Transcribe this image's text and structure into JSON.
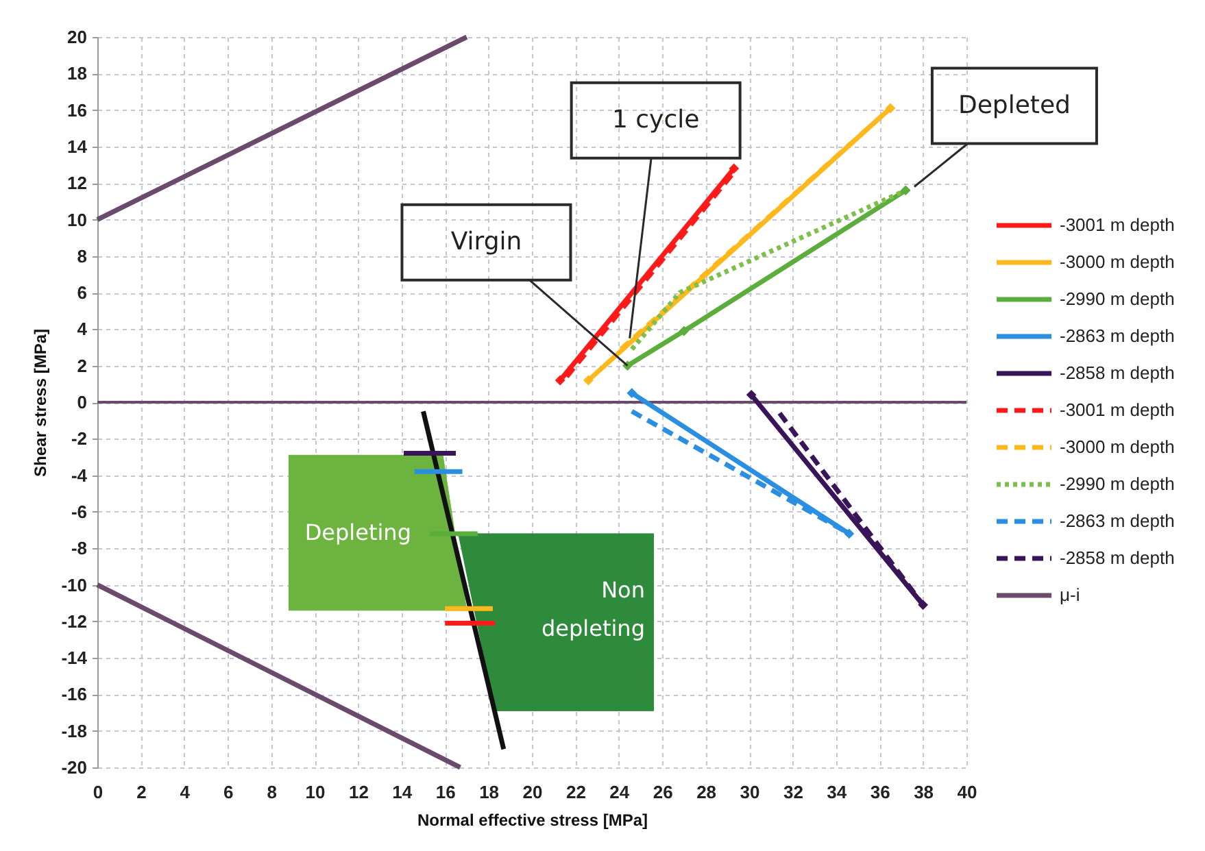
{
  "chart_data": {
    "type": "line",
    "xlabel": "Normal effective stress [MPa]",
    "ylabel": "Shear stress [MPa]",
    "xlim": [
      0,
      40
    ],
    "ylim": [
      -20,
      20
    ],
    "xticks": [
      0,
      2,
      4,
      6,
      8,
      10,
      12,
      14,
      16,
      18,
      20,
      22,
      24,
      26,
      28,
      30,
      32,
      34,
      36,
      38,
      40
    ],
    "yticks": [
      -20,
      -18,
      -16,
      -14,
      -12,
      -10,
      -8,
      -6,
      -4,
      -2,
      0,
      2,
      4,
      6,
      8,
      10,
      12,
      14,
      16,
      18,
      20
    ],
    "grid": true,
    "legend": "right",
    "series": [
      {
        "type": "area",
        "name": "Depleting",
        "color": "#6cb33f",
        "x": [
          8.8,
          15.9,
          17.0,
          8.8
        ],
        "values": [
          -2.9,
          -2.9,
          -11.4,
          -11.4
        ]
      },
      {
        "type": "area",
        "name": "Non depleting",
        "color": "#2e8b3c",
        "x": [
          16.6,
          25.6,
          25.6,
          18.3
        ],
        "values": [
          -7.2,
          -7.2,
          -16.9,
          -16.9
        ]
      },
      {
        "color": "#111111",
        "x": [
          15.0,
          18.7
        ],
        "values": [
          -0.5,
          -19.0
        ],
        "line_style": "solid"
      },
      {
        "color": "#3a1458",
        "x": [
          14.1,
          16.5
        ],
        "values": [
          -2.8,
          -2.8
        ],
        "line_style": "solid"
      },
      {
        "color": "#2a8fe0",
        "x": [
          14.6,
          16.8
        ],
        "values": [
          -3.8,
          -3.8
        ],
        "line_style": "solid"
      },
      {
        "color": "#5cae3c",
        "x": [
          15.3,
          17.5
        ],
        "values": [
          -7.2,
          -7.2
        ],
        "line_style": "solid"
      },
      {
        "color": "#ffb81c",
        "x": [
          16.0,
          18.2
        ],
        "values": [
          -11.3,
          -11.3
        ],
        "line_style": "solid"
      },
      {
        "color": "#ff1a1a",
        "x": [
          16.0,
          18.3
        ],
        "values": [
          -12.1,
          -12.1
        ],
        "line_style": "solid"
      },
      {
        "name": "-3001 m depth",
        "color": "#ff1a1a",
        "x": [
          21.3,
          29.3
        ],
        "values": [
          1.2,
          12.8
        ],
        "line_style": "solid",
        "marker": "diamond"
      },
      {
        "name": "-3000 m depth",
        "color": "#ffb81c",
        "x": [
          22.6,
          36.5
        ],
        "values": [
          1.2,
          16.1
        ],
        "line_style": "solid",
        "marker": "diamond"
      },
      {
        "name": "-2990 m depth",
        "color": "#5cae3c",
        "x": [
          24.4,
          27.0,
          37.2
        ],
        "values": [
          2.0,
          3.9,
          11.6
        ],
        "line_style": "solid",
        "marker": "diamond"
      },
      {
        "name": "-2863 m depth",
        "color": "#2a8fe0",
        "x": [
          24.6,
          34.6
        ],
        "values": [
          0.5,
          -7.2
        ],
        "line_style": "solid",
        "marker": "diamond"
      },
      {
        "name": "-2858 m depth",
        "color": "#3a1458",
        "x": [
          30.1,
          38.0
        ],
        "values": [
          0.4,
          -11.1
        ],
        "line_style": "solid",
        "marker": "diamond"
      },
      {
        "name": "-3001 m depth",
        "color": "#ff1a1a",
        "x": [
          21.6,
          29.3
        ],
        "values": [
          1.4,
          12.6
        ],
        "line_style": "dashed"
      },
      {
        "name": "-3000 m depth",
        "color": "#ffb81c",
        "x": [
          24.1,
          36.5
        ],
        "values": [
          2.9,
          16.1
        ],
        "line_style": "dashed"
      },
      {
        "name": "-2990 m depth",
        "color": "#7cc04a",
        "x": [
          24.6,
          26.8,
          37.2
        ],
        "values": [
          2.9,
          6.0,
          11.6
        ],
        "line_style": "dotted"
      },
      {
        "name": "-2863 m depth",
        "color": "#2a8fe0",
        "x": [
          24.6,
          34.6
        ],
        "values": [
          -0.5,
          -7.2
        ],
        "line_style": "dashed"
      },
      {
        "name": "-2858 m depth",
        "color": "#3a1458",
        "x": [
          31.4,
          38.0
        ],
        "values": [
          -0.6,
          -11.1
        ],
        "line_style": "dashed"
      },
      {
        "name": "μ-i",
        "color": "#6b4a6b",
        "x": [
          0,
          17.0,
          null,
          0,
          16.7
        ],
        "values": [
          10,
          20,
          null,
          -10,
          -20
        ],
        "line_style": "solid"
      }
    ],
    "ref_lines": [
      {
        "axis": "y",
        "value": 0,
        "color": "#6b4a6b"
      }
    ],
    "annotations": [
      {
        "text": "Virgin",
        "x": 24.4,
        "y": 2.0
      },
      {
        "text": "1 cycle",
        "x": 24.5,
        "y": 3.5
      },
      {
        "text": "Depleted",
        "x": 37.6,
        "y": 11.8
      }
    ]
  }
}
